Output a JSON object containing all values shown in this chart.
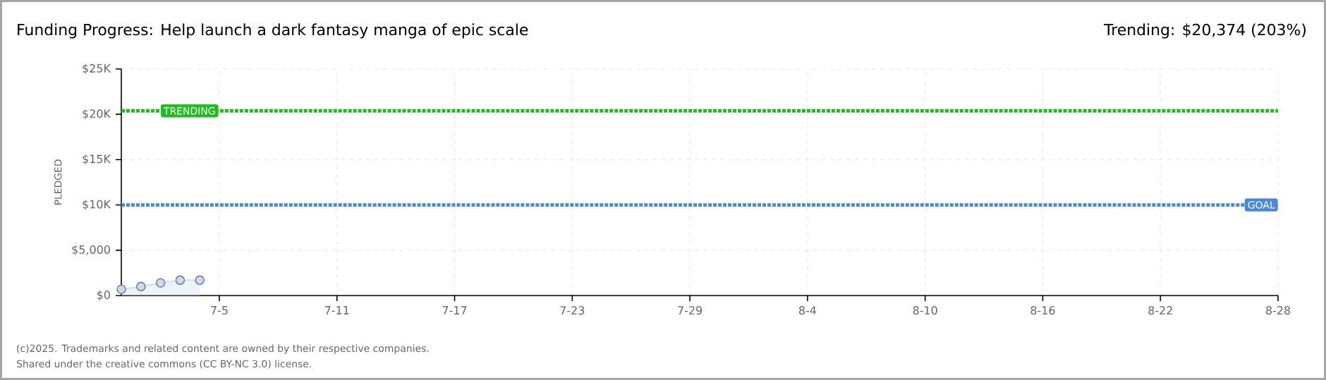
{
  "chart_data": {
    "type": "area",
    "title": "Funding Progress: Help launch a dark fantasy manga of epic scale",
    "subtitle": "Trending: $20,374 (203%)",
    "ylabel": "PLEDGED",
    "x": [
      "2025-06-30",
      "2025-07-01",
      "2025-07-02",
      "2025-07-03",
      "2025-07-04"
    ],
    "series": [
      {
        "color": "#c5dcf5",
        "values": [
          700,
          1000,
          1400,
          1700,
          1700
        ]
      }
    ],
    "xlim": [
      "2025-06-30",
      "2025-08-28"
    ],
    "xticks": [
      {
        "value": "2025-07-05",
        "label": "7-5"
      },
      {
        "value": "2025-07-11",
        "label": "7-11"
      },
      {
        "value": "2025-07-17",
        "label": "7-17"
      },
      {
        "value": "2025-07-23",
        "label": "7-23"
      },
      {
        "value": "2025-07-29",
        "label": "7-29"
      },
      {
        "value": "2025-08-04",
        "label": "8-4"
      },
      {
        "value": "2025-08-10",
        "label": "8-10"
      },
      {
        "value": "2025-08-16",
        "label": "8-16"
      },
      {
        "value": "2025-08-22",
        "label": "8-22"
      },
      {
        "value": "2025-08-28",
        "label": "8-28"
      }
    ],
    "ylim": [
      0,
      25000
    ],
    "yticks": [
      {
        "value": 0,
        "label": "$0"
      },
      {
        "value": 5000,
        "label": "$5,000"
      },
      {
        "value": 10000,
        "label": "$10K"
      },
      {
        "value": 15000,
        "label": "$15K"
      },
      {
        "value": 20000,
        "label": "$20K"
      },
      {
        "value": 25000,
        "label": "$25K"
      }
    ],
    "ref_lines": [
      {
        "axis": "y",
        "value": 20374,
        "label": "TRENDING",
        "color": "#22bb22",
        "line_style": "dotted"
      },
      {
        "axis": "y",
        "value": 10000,
        "label": "GOAL",
        "color": "#4a8ad8",
        "line_style": "dotted"
      }
    ],
    "grid": true,
    "marker": "circle",
    "annotations": [
      "(c)2025. Trademarks and related content are owned by their respective companies.",
      "Shared under the creative commons (CC BY-NC 3.0) license."
    ]
  }
}
